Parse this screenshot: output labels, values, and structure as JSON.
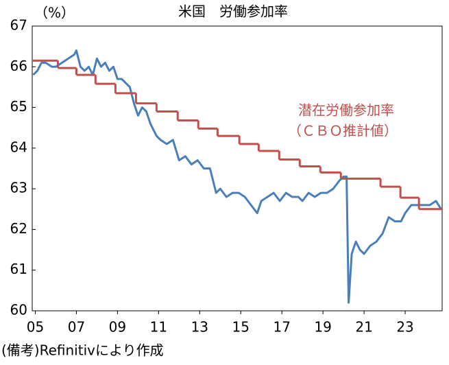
{
  "chart_data": {
    "type": "line",
    "title": "米国　労働参加率",
    "y_unit_label": "（%）",
    "note": "(備考)Refinitivにより作成",
    "xlim": [
      2004.85,
      2024.8
    ],
    "ylim": [
      60,
      67
    ],
    "yticks": [
      60,
      61,
      62,
      63,
      64,
      65,
      66,
      67
    ],
    "xticks": [
      {
        "value": 2005,
        "label": "05"
      },
      {
        "value": 2007,
        "label": "07"
      },
      {
        "value": 2009,
        "label": "09"
      },
      {
        "value": 2011,
        "label": "11"
      },
      {
        "value": 2013,
        "label": "13"
      },
      {
        "value": 2015,
        "label": "15"
      },
      {
        "value": 2017,
        "label": "17"
      },
      {
        "value": 2019,
        "label": "19"
      },
      {
        "value": 2021,
        "label": "21"
      },
      {
        "value": 2023,
        "label": "23"
      }
    ],
    "grid": false,
    "series": [
      {
        "color": "#4a7ebb",
        "step": false,
        "x": [
          2004.9,
          2005.1,
          2005.3,
          2005.5,
          2005.8,
          2006.0,
          2006.3,
          2006.6,
          2006.9,
          2007.0,
          2007.2,
          2007.4,
          2007.6,
          2007.8,
          2008.0,
          2008.2,
          2008.4,
          2008.6,
          2008.8,
          2009.0,
          2009.2,
          2009.4,
          2009.6,
          2009.8,
          2010.0,
          2010.2,
          2010.4,
          2010.6,
          2010.9,
          2011.1,
          2011.4,
          2011.7,
          2012.0,
          2012.3,
          2012.6,
          2012.9,
          2013.2,
          2013.5,
          2013.8,
          2014.0,
          2014.3,
          2014.6,
          2014.9,
          2015.2,
          2015.5,
          2015.8,
          2016.0,
          2016.3,
          2016.6,
          2016.9,
          2017.2,
          2017.5,
          2017.8,
          2018.0,
          2018.3,
          2018.6,
          2018.9,
          2019.2,
          2019.5,
          2019.8,
          2020.0,
          2020.15,
          2020.25,
          2020.4,
          2020.6,
          2020.8,
          2021.0,
          2021.3,
          2021.6,
          2021.9,
          2022.2,
          2022.5,
          2022.8,
          2023.0,
          2023.3,
          2023.6,
          2023.9,
          2024.2,
          2024.5,
          2024.75
        ],
        "values": [
          65.8,
          65.9,
          66.1,
          66.1,
          66.0,
          66.0,
          66.1,
          66.2,
          66.3,
          66.4,
          66.0,
          65.9,
          66.0,
          65.8,
          66.2,
          66.0,
          66.1,
          65.9,
          66.0,
          65.7,
          65.7,
          65.6,
          65.5,
          65.1,
          64.8,
          65.0,
          64.9,
          64.6,
          64.3,
          64.2,
          64.1,
          64.2,
          63.7,
          63.8,
          63.6,
          63.7,
          63.5,
          63.5,
          62.9,
          63.0,
          62.8,
          62.9,
          62.9,
          62.8,
          62.6,
          62.4,
          62.7,
          62.8,
          62.9,
          62.7,
          62.9,
          62.8,
          62.8,
          62.7,
          62.9,
          62.8,
          62.9,
          62.9,
          63.0,
          63.2,
          63.3,
          63.3,
          60.2,
          61.4,
          61.7,
          61.5,
          61.4,
          61.6,
          61.7,
          61.9,
          62.3,
          62.2,
          62.2,
          62.4,
          62.6,
          62.6,
          62.6,
          62.6,
          62.7,
          62.5
        ]
      },
      {
        "name": "潜在労働参加率",
        "name_sub": "（ＣＢＯ推計値）",
        "color": "#c0504d",
        "step": true,
        "x": [
          2004.85,
          2006.1,
          2007.0,
          2007.93,
          2008.9,
          2009.9,
          2010.9,
          2011.93,
          2012.93,
          2013.87,
          2014.93,
          2015.87,
          2016.87,
          2017.87,
          2018.87,
          2019.87,
          2021.8,
          2022.77,
          2023.67
        ],
        "values": [
          66.15,
          65.97,
          65.8,
          65.58,
          65.35,
          65.1,
          64.9,
          64.68,
          64.48,
          64.3,
          64.1,
          63.93,
          63.72,
          63.55,
          63.4,
          63.25,
          63.05,
          62.78,
          62.5
        ]
      }
    ]
  }
}
